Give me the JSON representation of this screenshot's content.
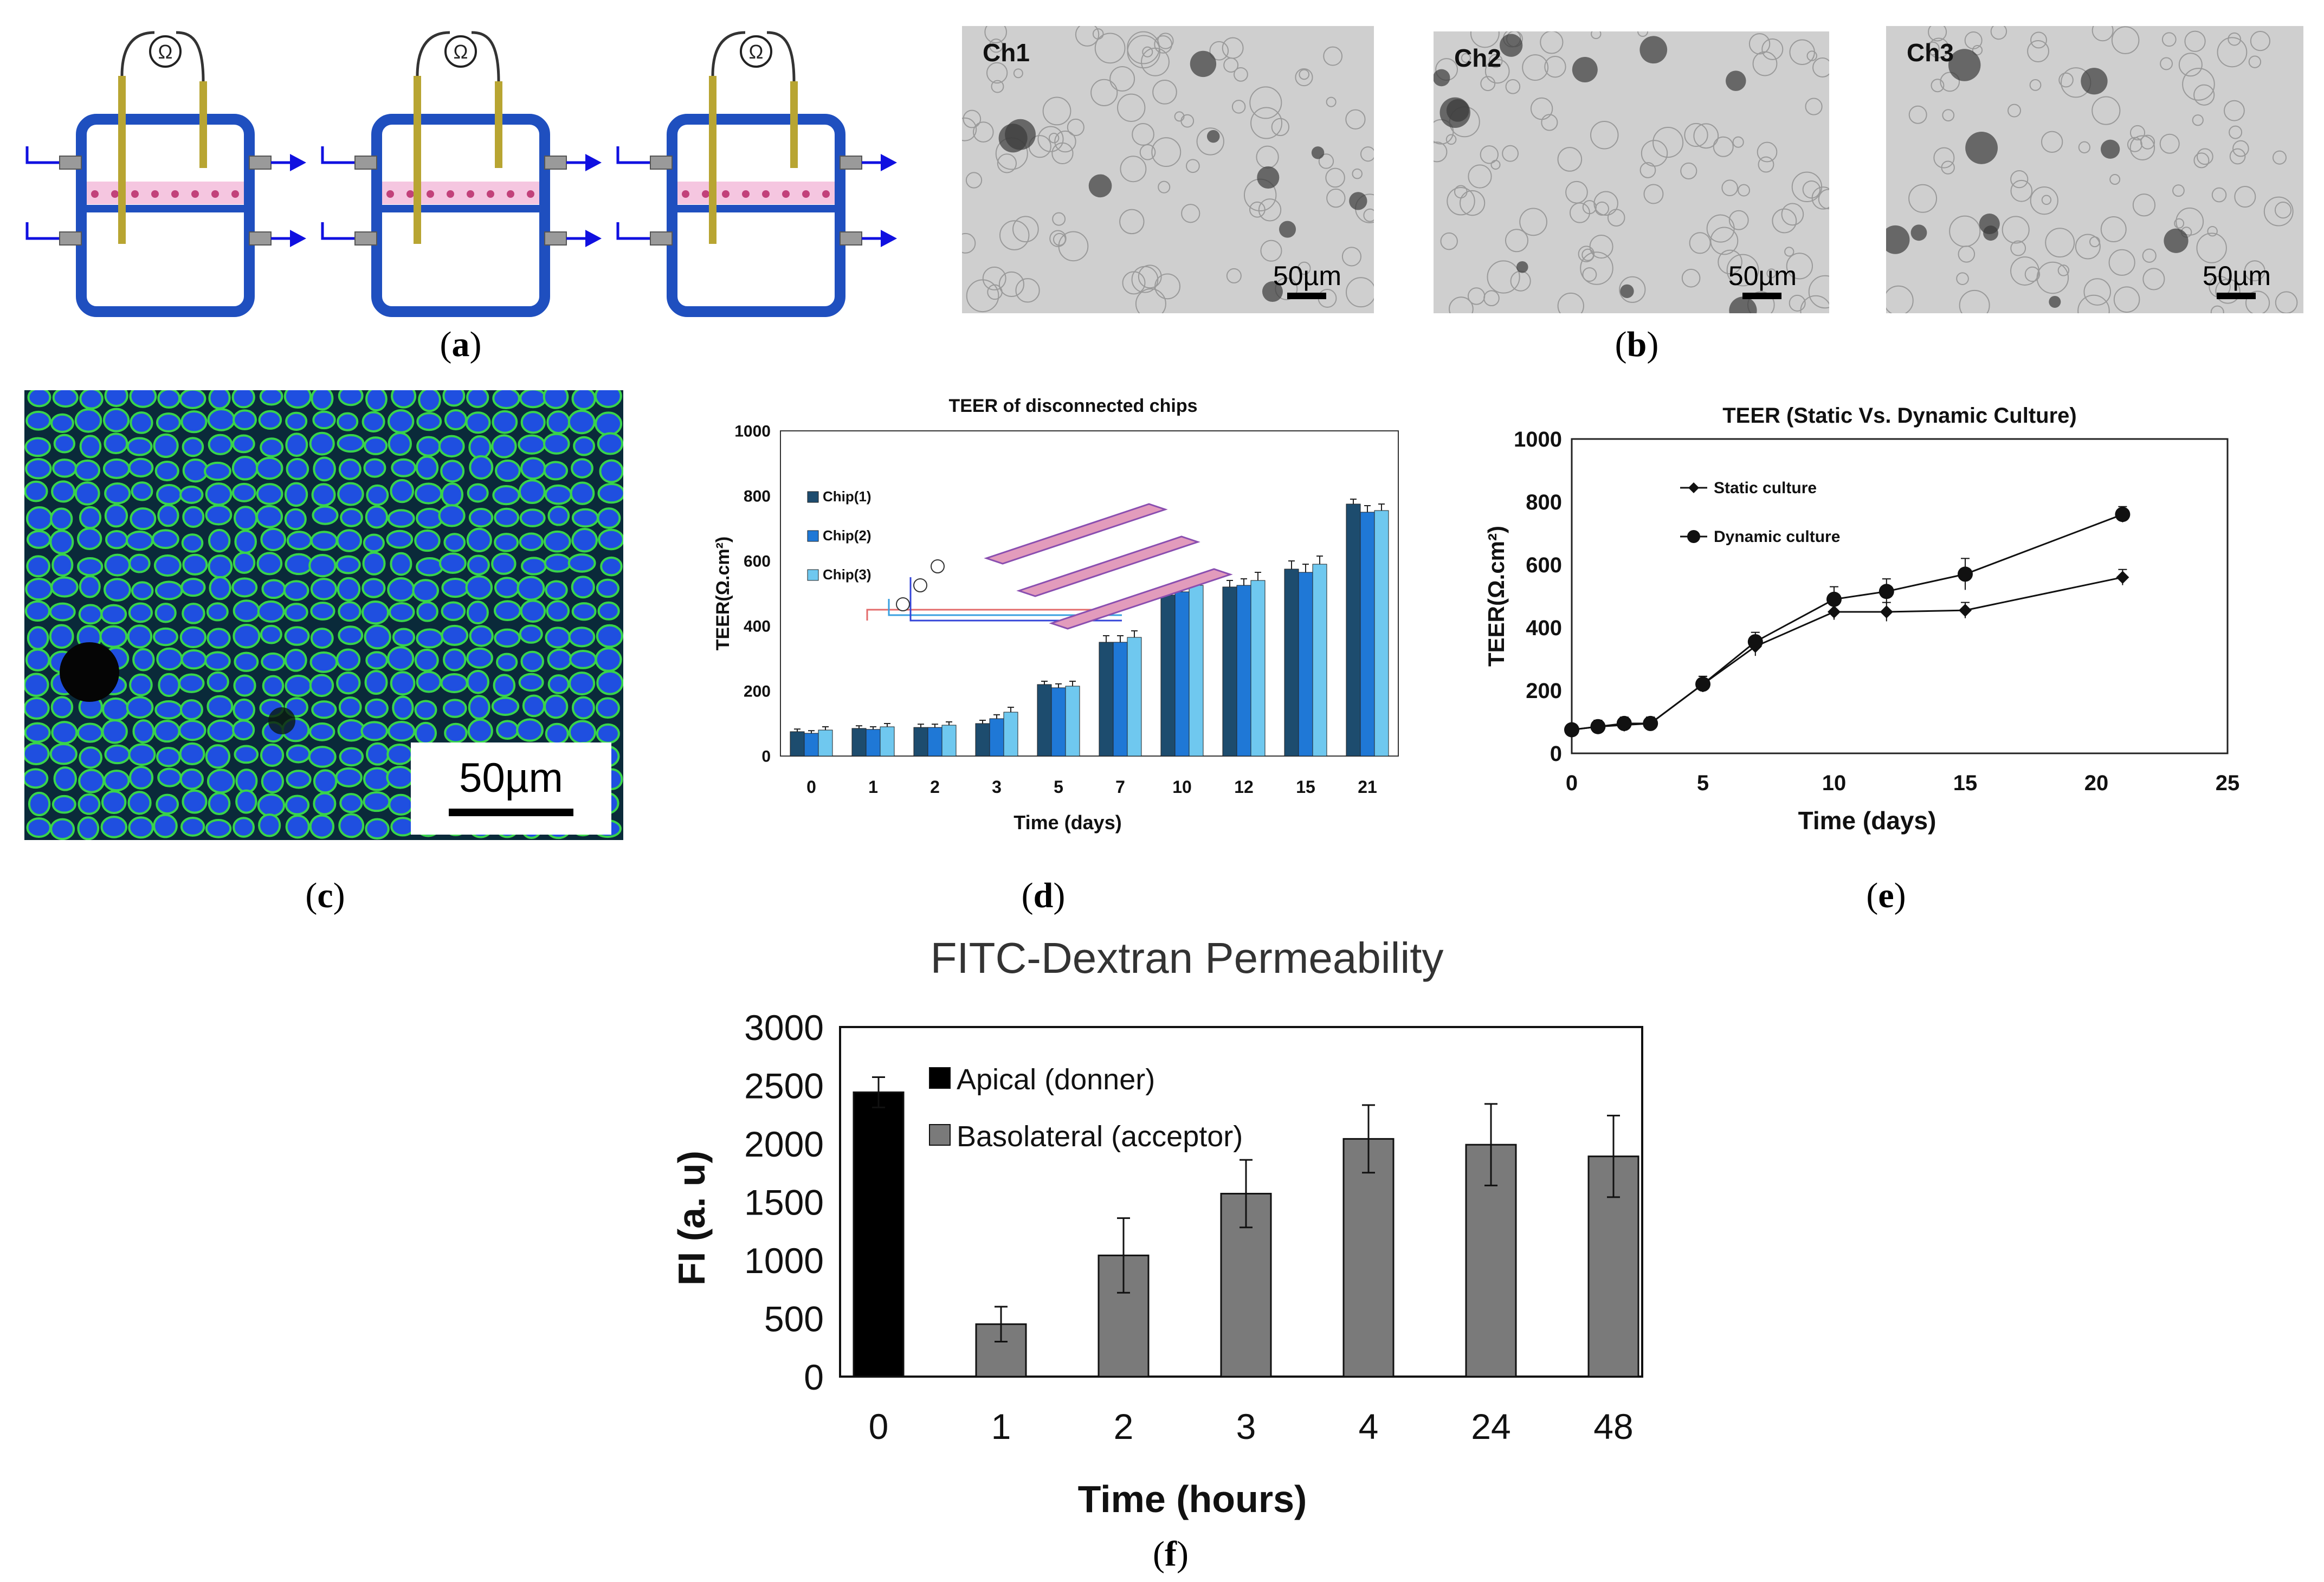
{
  "captions": [
    "a",
    "b",
    "c",
    "d",
    "e",
    "f"
  ],
  "panel_a": {
    "meter_symbol": "Ω",
    "chips": 3
  },
  "panel_b": {
    "images": [
      {
        "label": "Ch1",
        "scale": "50µm"
      },
      {
        "label": "Ch2",
        "scale": "50µm"
      },
      {
        "label": "Ch3",
        "scale": "50µm"
      }
    ]
  },
  "panel_c": {
    "scale": "50µm"
  },
  "colors": {
    "chip1": "#1d4c6e",
    "chip2": "#1f78d6",
    "chip3": "#6fc8ef",
    "apical": "#000000",
    "basolateral": "#7a7a7a",
    "chip_frame": "#1f4fbf",
    "flow_arrow": "#1010e0"
  },
  "chart_data": [
    {
      "id": "d",
      "type": "bar",
      "title": "TEER of disconnected chips",
      "xlabel": "Time (days)",
      "ylabel": "TEER(Ω.cm²)",
      "ylim": [
        0,
        1000
      ],
      "yticks": [
        0,
        200,
        400,
        600,
        800,
        1000
      ],
      "categories": [
        "0",
        "1",
        "2",
        "3",
        "5",
        "7",
        "10",
        "12",
        "15",
        "21"
      ],
      "series": [
        {
          "name": "Chip(1)",
          "values": [
            75,
            85,
            88,
            100,
            220,
            350,
            495,
            520,
            575,
            775
          ],
          "errors": [
            8,
            8,
            10,
            10,
            10,
            20,
            25,
            20,
            25,
            15
          ]
        },
        {
          "name": "Chip(2)",
          "values": [
            70,
            82,
            88,
            115,
            210,
            350,
            505,
            525,
            565,
            750
          ],
          "errors": [
            8,
            8,
            10,
            12,
            12,
            20,
            25,
            20,
            25,
            20
          ]
        },
        {
          "name": "Chip(3)",
          "values": [
            80,
            90,
            95,
            135,
            215,
            365,
            525,
            540,
            590,
            755
          ],
          "errors": [
            10,
            10,
            10,
            15,
            15,
            20,
            25,
            25,
            25,
            20
          ]
        }
      ],
      "legend": "top-left"
    },
    {
      "id": "e",
      "type": "line",
      "title": "TEER (Static Vs. Dynamic Culture)",
      "xlabel": "Time (days)",
      "ylabel": "TEER(Ω.cm²)",
      "xlim": [
        0,
        25
      ],
      "xticks": [
        0,
        5,
        10,
        15,
        20,
        25
      ],
      "ylim": [
        0,
        1000
      ],
      "yticks": [
        0,
        200,
        400,
        600,
        800,
        1000
      ],
      "x": [
        0,
        1,
        2,
        3,
        5,
        7,
        10,
        12,
        15,
        21
      ],
      "series": [
        {
          "name": "Static culture",
          "values": [
            75,
            85,
            90,
            95,
            220,
            340,
            450,
            450,
            455,
            560
          ],
          "errors": [
            15,
            20,
            20,
            20,
            25,
            30,
            25,
            30,
            25,
            25
          ]
        },
        {
          "name": "Dynamic culture",
          "values": [
            75,
            85,
            95,
            95,
            220,
            355,
            490,
            515,
            570,
            760
          ],
          "errors": [
            15,
            20,
            20,
            20,
            25,
            30,
            40,
            40,
            50,
            25
          ]
        }
      ],
      "legend": "top-left"
    },
    {
      "id": "f",
      "type": "bar",
      "title": "FITC-Dextran Permeability",
      "xlabel": "Time (hours)",
      "ylabel": "FI (a. u)",
      "ylim": [
        0,
        3000
      ],
      "yticks": [
        0,
        500,
        1000,
        1500,
        2000,
        2500,
        3000
      ],
      "categories": [
        "0",
        "1",
        "2",
        "3",
        "4",
        "24",
        "48"
      ],
      "series": [
        {
          "name": "Apical (donner)",
          "values": [
            2440,
            null,
            null,
            null,
            null,
            null,
            null
          ],
          "errors": [
            130,
            null,
            null,
            null,
            null,
            null,
            null
          ]
        },
        {
          "name": "Basolateral (acceptor)",
          "values": [
            null,
            450,
            1040,
            1570,
            2040,
            1990,
            1890
          ],
          "errors": [
            null,
            150,
            320,
            290,
            290,
            350,
            350
          ]
        }
      ],
      "legend": "top-left"
    }
  ]
}
